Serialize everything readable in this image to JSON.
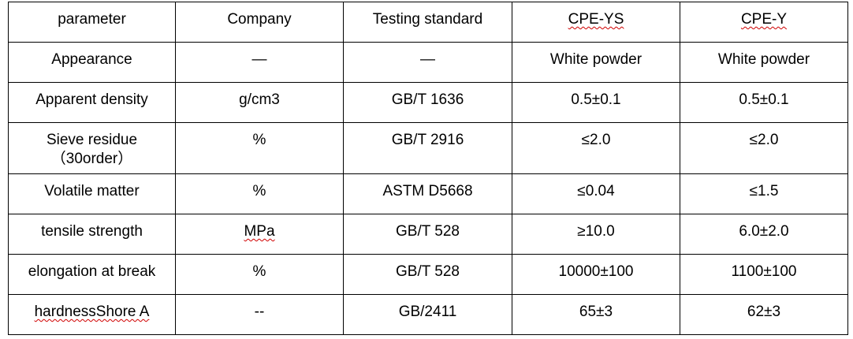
{
  "table": {
    "header": [
      "parameter",
      "Company",
      "Testing standard",
      "CPE-YS",
      "CPE-Y"
    ],
    "rows": [
      [
        "Appearance",
        "—",
        "—",
        "White powder",
        "White powder"
      ],
      [
        "Apparent density",
        "g/cm3",
        "GB/T 1636",
        "0.5±0.1",
        "0.5±0.1"
      ],
      [
        "Sieve residue\n（30order）",
        "%",
        "GB/T 2916",
        "≤2.0",
        "≤2.0"
      ],
      [
        "Volatile matter",
        "%",
        "ASTM D5668",
        "≤0.04",
        "≤1.5"
      ],
      [
        "tensile strength",
        "MPa",
        "GB/T 528",
        "≥10.0",
        "6.0±2.0"
      ],
      [
        "elongation at break",
        "%",
        "GB/T 528",
        "10000±100",
        "1100±100"
      ],
      [
        "hardnessShore A",
        "--",
        "GB/2411",
        "65±3",
        "62±3"
      ]
    ]
  }
}
